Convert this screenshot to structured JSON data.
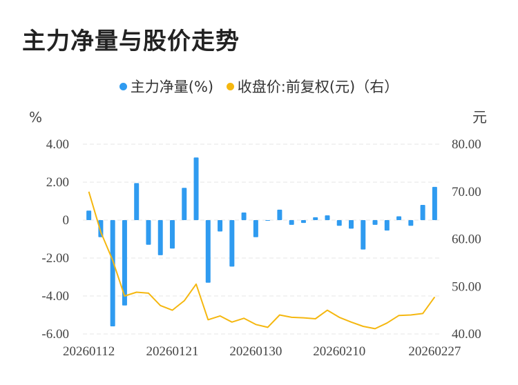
{
  "title": "主力净量与股价走势",
  "legend": {
    "bar_label": "主力净量(%)",
    "line_label": "收盘价:前复权(元)（右）"
  },
  "colors": {
    "bar": "#2f9bf0",
    "line": "#f5b70f",
    "grid": "#e6e6e6",
    "text": "#444444"
  },
  "chart_data": {
    "type": "bar",
    "left_unit": "%",
    "right_unit": "元",
    "left_ylim": [
      -6,
      4
    ],
    "left_ticks": [
      "4.00",
      "2.00",
      "0",
      "-2.00",
      "-4.00",
      "-6.00"
    ],
    "right_ylim": [
      40,
      80
    ],
    "right_ticks": [
      "80.00",
      "70.00",
      "60.00",
      "50.00",
      "40.00"
    ],
    "x_tick_labels": [
      "20260112",
      "20260121",
      "20260130",
      "20260210",
      "20260227"
    ],
    "series": [
      {
        "name": "主力净量(%)",
        "type": "bar",
        "values": [
          0.5,
          -0.9,
          -5.6,
          -4.5,
          1.95,
          -1.3,
          -1.85,
          -1.5,
          1.7,
          3.3,
          -3.3,
          -0.6,
          -2.45,
          0.4,
          -0.9,
          0.0,
          0.55,
          -0.25,
          -0.15,
          0.15,
          0.25,
          -0.3,
          -0.45,
          -1.55,
          -0.25,
          -0.55,
          0.2,
          -0.3,
          0.8,
          1.75
        ]
      },
      {
        "name": "收盘价:前复权(元)（右）",
        "type": "line",
        "values": [
          70.0,
          61.5,
          55.5,
          48.0,
          48.8,
          48.6,
          46.0,
          45.0,
          47.0,
          50.5,
          43.0,
          43.8,
          42.5,
          43.3,
          42.0,
          41.4,
          44.0,
          43.5,
          43.4,
          43.2,
          45.0,
          43.5,
          42.5,
          41.6,
          41.1,
          42.3,
          43.9,
          44.0,
          44.3,
          47.8
        ]
      }
    ]
  }
}
